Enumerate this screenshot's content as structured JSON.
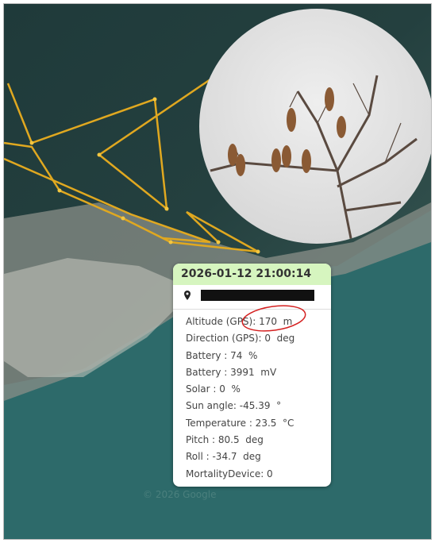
{
  "popup": {
    "timestamp": "2026-01-12 21:00:14",
    "rows": [
      "Altitude (GPS): 170  m",
      "Direction (GPS): 0  deg",
      "Battery : 74  %",
      "Battery : 3991  mV",
      "Solar : 0  %",
      "Sun angle: -45.39  °",
      "Temperature : 23.5  °C",
      "Pitch : 80.5  deg",
      "Roll : -34.7  deg",
      "MortalityDevice: 0"
    ]
  },
  "map": {
    "attribution": "© 2026 Google"
  }
}
